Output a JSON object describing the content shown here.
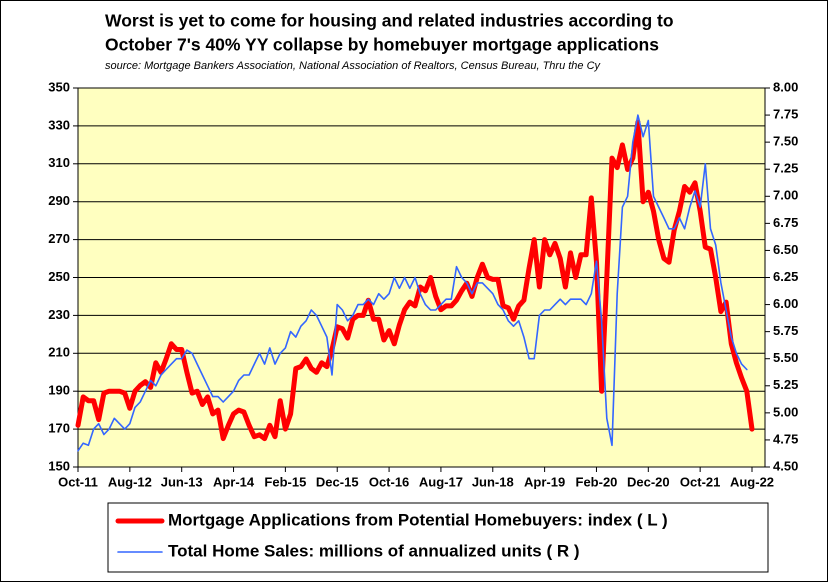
{
  "chart_data": {
    "type": "line",
    "title": [
      "Worst is yet to come for housing and related industries according to",
      "October 7's 40% YY collapse by homebuyer mortgage applications"
    ],
    "subtitle": "source: Mortgage Bankers Association, National Association of Realtors, Census Bureau, Thru the Cy",
    "categories": [
      "Oct-11",
      null,
      null,
      null,
      null,
      null,
      null,
      null,
      null,
      null,
      "Aug-12",
      null,
      null,
      null,
      null,
      null,
      null,
      null,
      null,
      null,
      "Jun-13",
      null,
      null,
      null,
      null,
      null,
      null,
      null,
      null,
      null,
      "Apr-14",
      null,
      null,
      null,
      null,
      null,
      null,
      null,
      null,
      null,
      "Feb-15",
      null,
      null,
      null,
      null,
      null,
      null,
      null,
      null,
      null,
      "Dec-15",
      null,
      null,
      null,
      null,
      null,
      null,
      null,
      null,
      null,
      "Oct-16",
      null,
      null,
      null,
      null,
      null,
      null,
      null,
      null,
      null,
      "Aug-17",
      null,
      null,
      null,
      null,
      null,
      null,
      null,
      null,
      null,
      "Jun-18",
      null,
      null,
      null,
      null,
      null,
      null,
      null,
      null,
      null,
      "Apr-19",
      null,
      null,
      null,
      null,
      null,
      null,
      null,
      null,
      null,
      "Feb-20",
      null,
      null,
      null,
      null,
      null,
      null,
      null,
      null,
      null,
      "Dec-20",
      null,
      null,
      null,
      null,
      null,
      null,
      null,
      null,
      null,
      "Oct-21",
      null,
      null,
      null,
      null,
      null,
      null,
      null,
      null,
      null,
      "Aug-22"
    ],
    "series": [
      {
        "name": "Mortgage Applications from Potential Homebuyers: index ( L )",
        "color": "#ff0000",
        "axis": "y",
        "values": [
          172,
          187,
          185,
          185,
          175,
          189,
          190,
          190,
          190,
          189,
          181,
          190,
          193,
          195,
          192,
          205,
          200,
          207,
          215,
          212,
          212,
          200,
          189,
          190,
          183,
          187,
          178,
          180,
          165,
          172,
          178,
          180,
          179,
          172,
          166,
          167,
          165,
          172,
          166,
          185,
          170,
          178,
          202,
          203,
          207,
          202,
          200,
          205,
          203,
          212,
          224,
          223,
          218,
          228,
          230,
          230,
          238,
          228,
          228,
          217,
          222,
          215,
          225,
          233,
          237,
          235,
          245,
          243,
          250,
          240,
          233,
          235,
          235,
          238,
          243,
          247,
          240,
          250,
          257,
          250,
          249,
          249,
          235,
          234,
          228,
          235,
          238,
          255,
          270,
          245,
          270,
          262,
          268,
          260,
          245,
          263,
          250,
          262,
          262,
          292,
          258,
          190,
          250,
          313,
          308,
          320,
          307,
          313,
          332,
          290,
          295,
          285,
          270,
          260,
          258,
          275,
          285,
          298,
          295,
          300,
          285,
          266,
          265,
          250,
          232,
          237,
          215,
          205,
          197,
          190,
          170
        ]
      },
      {
        "name": "Total Home Sales: millions of annualized units ( R )",
        "color": "#3366ff",
        "axis": "y2",
        "values": [
          4.65,
          4.72,
          4.7,
          4.85,
          4.9,
          4.8,
          4.85,
          4.95,
          4.9,
          4.85,
          4.9,
          5.05,
          5.1,
          5.2,
          5.3,
          5.25,
          5.35,
          5.4,
          5.45,
          5.5,
          5.5,
          5.58,
          5.55,
          5.45,
          5.35,
          5.25,
          5.15,
          5.15,
          5.1,
          5.15,
          5.2,
          5.3,
          5.35,
          5.35,
          5.45,
          5.55,
          5.45,
          5.6,
          5.45,
          5.55,
          5.6,
          5.75,
          5.7,
          5.8,
          5.85,
          5.95,
          5.9,
          5.8,
          5.7,
          5.35,
          6.0,
          5.95,
          5.85,
          5.9,
          6.0,
          6.0,
          6.05,
          6.0,
          6.1,
          6.05,
          6.1,
          6.25,
          6.15,
          6.25,
          6.15,
          6.25,
          6.1,
          6.0,
          5.95,
          5.95,
          6.0,
          6.05,
          6.05,
          6.35,
          6.25,
          6.2,
          6.1,
          6.2,
          6.2,
          6.15,
          6.1,
          6.0,
          5.95,
          5.85,
          5.8,
          5.85,
          5.7,
          5.5,
          5.5,
          5.9,
          5.95,
          5.95,
          6.0,
          6.05,
          6.0,
          6.05,
          6.05,
          6.05,
          6.0,
          6.1,
          6.4,
          5.85,
          4.95,
          4.7,
          6.1,
          6.9,
          7.0,
          7.5,
          7.75,
          7.55,
          7.7,
          7.0,
          6.9,
          6.8,
          6.7,
          6.7,
          6.8,
          6.7,
          6.9,
          7.05,
          6.9,
          7.3,
          6.7,
          6.55,
          6.2,
          5.95,
          5.7,
          5.55,
          5.45,
          5.4,
          null
        ]
      }
    ],
    "ylim": [
      150,
      350
    ],
    "yticks": [
      150,
      170,
      190,
      210,
      230,
      250,
      270,
      290,
      310,
      330,
      350
    ],
    "y2lim": [
      4.5,
      8
    ],
    "y2ticks": [
      {
        "value": 4.5,
        "label": "4.50"
      },
      4.75,
      {
        "value": 5,
        "label": "5.00"
      },
      5.25,
      {
        "value": 5.5,
        "label": "5.50"
      },
      5.75,
      {
        "value": 6,
        "label": "6.00"
      },
      6.25,
      {
        "value": 6.5,
        "label": "6.50"
      },
      6.75,
      {
        "value": 7,
        "label": "7.00"
      },
      7.25,
      {
        "value": 7.5,
        "label": "7.50"
      },
      7.75,
      {
        "value": 8,
        "label": "8.00"
      }
    ],
    "grid": true,
    "legend": "bottom"
  }
}
